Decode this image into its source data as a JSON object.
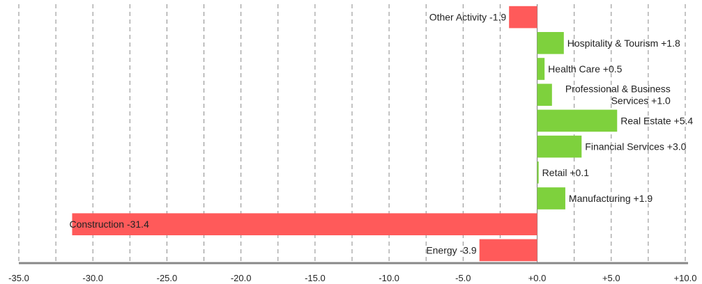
{
  "chart_data": {
    "type": "bar",
    "orientation": "horizontal",
    "categories": [
      "Other Activity",
      "Hospitality & Tourism",
      "Health Care",
      "Professional & Business Services",
      "Real Estate",
      "Financial Services",
      "Retail",
      "Manufacturing",
      "Construction",
      "Energy"
    ],
    "values": [
      -1.9,
      1.8,
      0.5,
      1.0,
      5.4,
      3.0,
      0.1,
      1.9,
      -31.4,
      -3.9
    ],
    "labels": [
      "Other Activity -1.9",
      "Hospitality & Tourism +1.8",
      "Health Care +0.5",
      "Professional & Business\nServices +1.0",
      "Real Estate +5.4",
      "Financial Services +3.0",
      "Retail +0.1",
      "Manufacturing +1.9",
      "Construction -31.4",
      "Energy -3.9"
    ],
    "xlim": [
      -35,
      10
    ],
    "xticks": [
      -35,
      -30,
      -25,
      -20,
      -15,
      -10,
      -5,
      0,
      5,
      10
    ],
    "xtick_labels": [
      "-35.0",
      "-30.0",
      "-25.0",
      "-20.0",
      "-15.0",
      "-10.0",
      "-5.0",
      "+0.0",
      "+5.0",
      "+10.0"
    ],
    "grid": "vertical-dashed",
    "title": "",
    "xlabel": "",
    "ylabel": "",
    "colors": {
      "positive": "#7ed13d",
      "negative": "#ff5a5a"
    }
  }
}
